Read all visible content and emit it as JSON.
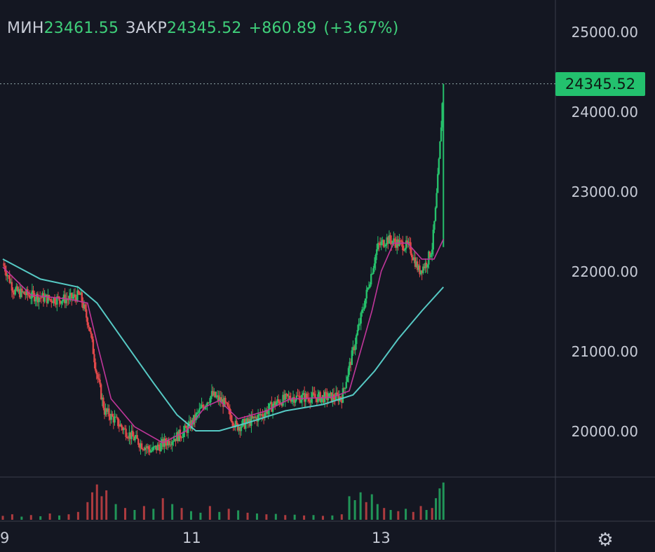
{
  "legend": {
    "low_label": "МИН",
    "low_value": "23461.55",
    "close_label": "ЗАКР",
    "close_value": "24345.52",
    "change": "+860.89",
    "change_pct": "(+3.67%)"
  },
  "last_price": "24345.52",
  "colors": {
    "background": "#141722",
    "up": "#26c06b",
    "down": "#e0484a",
    "ma_fast": "#c0369a",
    "ma_slow": "#56c9c4",
    "badge": "#23c16e",
    "grid": "#3a3e4b"
  },
  "settings_icon": "gear-icon",
  "chart_data": {
    "type": "candlestick",
    "y_axis": {
      "ticks": [
        "25000.00",
        "24000.00",
        "23000.00",
        "22000.00",
        "21000.00",
        "20000.00"
      ],
      "tick_values": [
        25000,
        24000,
        23000,
        22000,
        21000,
        20000
      ],
      "range": [
        19400,
        25350
      ]
    },
    "x_axis": {
      "ticks": [
        "9",
        "11",
        "13"
      ],
      "tick_values": [
        9,
        11,
        13
      ],
      "range": [
        9,
        13.8
      ]
    },
    "price_series": [
      {
        "t": 9.0,
        "p": 22100
      },
      {
        "t": 9.12,
        "p": 21750
      },
      {
        "t": 9.28,
        "p": 21700
      },
      {
        "t": 9.5,
        "p": 21650
      },
      {
        "t": 9.7,
        "p": 21650
      },
      {
        "t": 9.82,
        "p": 21700
      },
      {
        "t": 9.92,
        "p": 21300
      },
      {
        "t": 10.0,
        "p": 20700
      },
      {
        "t": 10.08,
        "p": 20250
      },
      {
        "t": 10.18,
        "p": 20150
      },
      {
        "t": 10.3,
        "p": 20000
      },
      {
        "t": 10.45,
        "p": 19850
      },
      {
        "t": 10.58,
        "p": 19750
      },
      {
        "t": 10.72,
        "p": 19850
      },
      {
        "t": 10.88,
        "p": 19950
      },
      {
        "t": 10.98,
        "p": 20050
      },
      {
        "t": 11.12,
        "p": 20300
      },
      {
        "t": 11.22,
        "p": 20450
      },
      {
        "t": 11.35,
        "p": 20350
      },
      {
        "t": 11.48,
        "p": 20050
      },
      {
        "t": 11.6,
        "p": 20100
      },
      {
        "t": 11.75,
        "p": 20200
      },
      {
        "t": 11.9,
        "p": 20350
      },
      {
        "t": 12.05,
        "p": 20420
      },
      {
        "t": 12.2,
        "p": 20420
      },
      {
        "t": 12.4,
        "p": 20420
      },
      {
        "t": 12.6,
        "p": 20420
      },
      {
        "t": 12.68,
        "p": 20800
      },
      {
        "t": 12.78,
        "p": 21300
      },
      {
        "t": 12.88,
        "p": 21800
      },
      {
        "t": 12.98,
        "p": 22300
      },
      {
        "t": 13.08,
        "p": 22400
      },
      {
        "t": 13.2,
        "p": 22350
      },
      {
        "t": 13.32,
        "p": 22300
      },
      {
        "t": 13.42,
        "p": 22000
      },
      {
        "t": 13.5,
        "p": 22100
      },
      {
        "t": 13.56,
        "p": 22300
      },
      {
        "t": 13.6,
        "p": 22800
      },
      {
        "t": 13.64,
        "p": 23500
      },
      {
        "t": 13.68,
        "p": 24345.52
      }
    ],
    "ma_fast": [
      {
        "t": 9.0,
        "p": 22050
      },
      {
        "t": 9.3,
        "p": 21700
      },
      {
        "t": 9.7,
        "p": 21650
      },
      {
        "t": 9.9,
        "p": 21600
      },
      {
        "t": 10.0,
        "p": 21100
      },
      {
        "t": 10.15,
        "p": 20400
      },
      {
        "t": 10.4,
        "p": 20050
      },
      {
        "t": 10.7,
        "p": 19850
      },
      {
        "t": 10.95,
        "p": 20000
      },
      {
        "t": 11.15,
        "p": 20300
      },
      {
        "t": 11.3,
        "p": 20380
      },
      {
        "t": 11.5,
        "p": 20150
      },
      {
        "t": 11.8,
        "p": 20250
      },
      {
        "t": 12.05,
        "p": 20400
      },
      {
        "t": 12.5,
        "p": 20420
      },
      {
        "t": 12.68,
        "p": 20500
      },
      {
        "t": 12.8,
        "p": 21000
      },
      {
        "t": 12.92,
        "p": 21500
      },
      {
        "t": 13.02,
        "p": 22000
      },
      {
        "t": 13.15,
        "p": 22350
      },
      {
        "t": 13.3,
        "p": 22350
      },
      {
        "t": 13.45,
        "p": 22150
      },
      {
        "t": 13.58,
        "p": 22150
      },
      {
        "t": 13.68,
        "p": 22400
      }
    ],
    "ma_slow": [
      {
        "t": 9.0,
        "p": 22150
      },
      {
        "t": 9.4,
        "p": 21900
      },
      {
        "t": 9.8,
        "p": 21800
      },
      {
        "t": 10.0,
        "p": 21600
      },
      {
        "t": 10.3,
        "p": 21100
      },
      {
        "t": 10.6,
        "p": 20600
      },
      {
        "t": 10.85,
        "p": 20200
      },
      {
        "t": 11.05,
        "p": 20000
      },
      {
        "t": 11.3,
        "p": 20000
      },
      {
        "t": 11.6,
        "p": 20100
      },
      {
        "t": 12.0,
        "p": 20250
      },
      {
        "t": 12.4,
        "p": 20330
      },
      {
        "t": 12.72,
        "p": 20450
      },
      {
        "t": 12.95,
        "p": 20750
      },
      {
        "t": 13.2,
        "p": 21150
      },
      {
        "t": 13.45,
        "p": 21500
      },
      {
        "t": 13.68,
        "p": 21800
      }
    ],
    "volume": {
      "range": [
        0,
        100
      ],
      "bars": [
        {
          "t": 9.0,
          "v": 10,
          "up": false
        },
        {
          "t": 9.1,
          "v": 14,
          "up": false
        },
        {
          "t": 9.2,
          "v": 8,
          "up": true
        },
        {
          "t": 9.3,
          "v": 12,
          "up": false
        },
        {
          "t": 9.4,
          "v": 9,
          "up": true
        },
        {
          "t": 9.5,
          "v": 16,
          "up": false
        },
        {
          "t": 9.6,
          "v": 11,
          "up": true
        },
        {
          "t": 9.7,
          "v": 14,
          "up": false
        },
        {
          "t": 9.8,
          "v": 20,
          "up": false
        },
        {
          "t": 9.9,
          "v": 45,
          "up": false
        },
        {
          "t": 9.95,
          "v": 70,
          "up": false
        },
        {
          "t": 10.0,
          "v": 90,
          "up": false
        },
        {
          "t": 10.05,
          "v": 60,
          "up": false
        },
        {
          "t": 10.1,
          "v": 75,
          "up": false
        },
        {
          "t": 10.2,
          "v": 40,
          "up": true
        },
        {
          "t": 10.3,
          "v": 30,
          "up": false
        },
        {
          "t": 10.4,
          "v": 25,
          "up": true
        },
        {
          "t": 10.5,
          "v": 35,
          "up": false
        },
        {
          "t": 10.6,
          "v": 28,
          "up": true
        },
        {
          "t": 10.7,
          "v": 55,
          "up": false
        },
        {
          "t": 10.8,
          "v": 40,
          "up": true
        },
        {
          "t": 10.9,
          "v": 30,
          "up": false
        },
        {
          "t": 11.0,
          "v": 22,
          "up": true
        },
        {
          "t": 11.1,
          "v": 18,
          "up": true
        },
        {
          "t": 11.2,
          "v": 35,
          "up": false
        },
        {
          "t": 11.3,
          "v": 20,
          "up": true
        },
        {
          "t": 11.4,
          "v": 28,
          "up": false
        },
        {
          "t": 11.5,
          "v": 24,
          "up": true
        },
        {
          "t": 11.6,
          "v": 18,
          "up": false
        },
        {
          "t": 11.7,
          "v": 16,
          "up": true
        },
        {
          "t": 11.8,
          "v": 14,
          "up": false
        },
        {
          "t": 11.9,
          "v": 15,
          "up": true
        },
        {
          "t": 12.0,
          "v": 12,
          "up": false
        },
        {
          "t": 12.1,
          "v": 13,
          "up": true
        },
        {
          "t": 12.2,
          "v": 11,
          "up": false
        },
        {
          "t": 12.3,
          "v": 12,
          "up": true
        },
        {
          "t": 12.4,
          "v": 10,
          "up": false
        },
        {
          "t": 12.5,
          "v": 11,
          "up": true
        },
        {
          "t": 12.6,
          "v": 14,
          "up": false
        },
        {
          "t": 12.68,
          "v": 60,
          "up": true
        },
        {
          "t": 12.74,
          "v": 50,
          "up": true
        },
        {
          "t": 12.8,
          "v": 70,
          "up": true
        },
        {
          "t": 12.86,
          "v": 45,
          "up": false
        },
        {
          "t": 12.92,
          "v": 65,
          "up": true
        },
        {
          "t": 12.98,
          "v": 40,
          "up": true
        },
        {
          "t": 13.05,
          "v": 30,
          "up": false
        },
        {
          "t": 13.12,
          "v": 25,
          "up": true
        },
        {
          "t": 13.2,
          "v": 22,
          "up": false
        },
        {
          "t": 13.28,
          "v": 28,
          "up": true
        },
        {
          "t": 13.36,
          "v": 20,
          "up": false
        },
        {
          "t": 13.44,
          "v": 35,
          "up": false
        },
        {
          "t": 13.5,
          "v": 25,
          "up": true
        },
        {
          "t": 13.56,
          "v": 30,
          "up": false
        },
        {
          "t": 13.6,
          "v": 55,
          "up": true
        },
        {
          "t": 13.64,
          "v": 80,
          "up": true
        },
        {
          "t": 13.68,
          "v": 95,
          "up": true
        }
      ]
    }
  }
}
